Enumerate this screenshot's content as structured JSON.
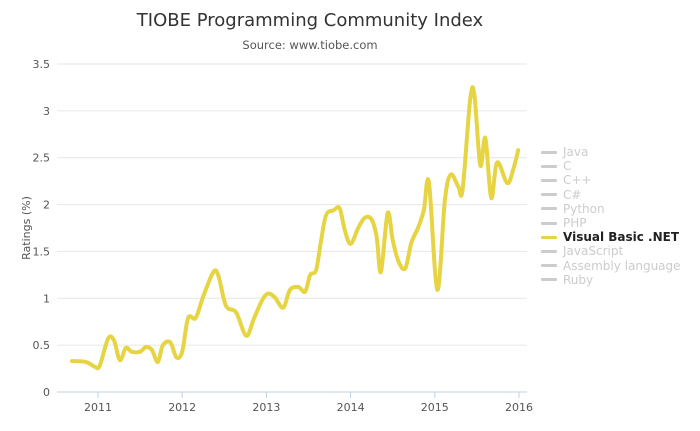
{
  "chart_data": {
    "type": "line",
    "title": "TIOBE Programming Community Index",
    "subtitle": "Source: www.tiobe.com",
    "xlabel": "",
    "ylabel": "Ratings (%)",
    "xlim": [
      2010.69,
      2016.0
    ],
    "ylim": [
      0,
      3.5
    ],
    "x_ticks": [
      "2011",
      "2012",
      "2013",
      "2014",
      "2015",
      "2016"
    ],
    "y_ticks": [
      "0",
      "0.5",
      "1",
      "1.5",
      "2",
      "2.5",
      "3",
      "3.5"
    ],
    "grid": true,
    "legend_placement": "right",
    "legend": [
      {
        "name": "Java",
        "visible": false
      },
      {
        "name": "C",
        "visible": false
      },
      {
        "name": "C++",
        "visible": false
      },
      {
        "name": "C#",
        "visible": false
      },
      {
        "name": "Python",
        "visible": false
      },
      {
        "name": "PHP",
        "visible": false
      },
      {
        "name": "Visual Basic .NET",
        "visible": true
      },
      {
        "name": "JavaScript",
        "visible": false
      },
      {
        "name": "Assembly language",
        "visible": false
      },
      {
        "name": "Ruby",
        "visible": false
      }
    ],
    "series": [
      {
        "name": "Visual Basic .NET",
        "color": "#e6d443",
        "x": [
          2010.69,
          2010.86,
          2010.96,
          2011.02,
          2011.12,
          2011.19,
          2011.26,
          2011.33,
          2011.4,
          2011.5,
          2011.57,
          2011.64,
          2011.71,
          2011.77,
          2011.86,
          2011.93,
          2012.0,
          2012.07,
          2012.16,
          2012.25,
          2012.37,
          2012.43,
          2012.52,
          2012.64,
          2012.76,
          2012.85,
          2012.95,
          2013.02,
          2013.1,
          2013.2,
          2013.28,
          2013.38,
          2013.46,
          2013.52,
          2013.59,
          2013.65,
          2013.71,
          2013.8,
          2013.87,
          2013.93,
          2014.0,
          2014.09,
          2014.17,
          2014.25,
          2014.31,
          2014.36,
          2014.44,
          2014.5,
          2014.57,
          2014.65,
          2014.72,
          2014.8,
          2014.87,
          2014.93,
          2015.03,
          2015.12,
          2015.19,
          2015.28,
          2015.33,
          2015.42,
          2015.47,
          2015.54,
          2015.6,
          2015.67,
          2015.74,
          2015.86,
          2015.93,
          2015.99
        ],
        "y": [
          0.33,
          0.32,
          0.27,
          0.28,
          0.57,
          0.55,
          0.34,
          0.47,
          0.43,
          0.43,
          0.48,
          0.45,
          0.32,
          0.5,
          0.53,
          0.37,
          0.43,
          0.79,
          0.79,
          1.02,
          1.28,
          1.24,
          0.92,
          0.85,
          0.6,
          0.78,
          0.98,
          1.05,
          1.01,
          0.9,
          1.09,
          1.12,
          1.07,
          1.25,
          1.3,
          1.62,
          1.89,
          1.94,
          1.96,
          1.73,
          1.58,
          1.75,
          1.86,
          1.84,
          1.65,
          1.28,
          1.91,
          1.62,
          1.39,
          1.32,
          1.59,
          1.75,
          1.94,
          2.24,
          1.09,
          2.05,
          2.32,
          2.19,
          2.16,
          3.12,
          3.17,
          2.42,
          2.71,
          2.07,
          2.45,
          2.23,
          2.37,
          2.58
        ]
      }
    ]
  }
}
